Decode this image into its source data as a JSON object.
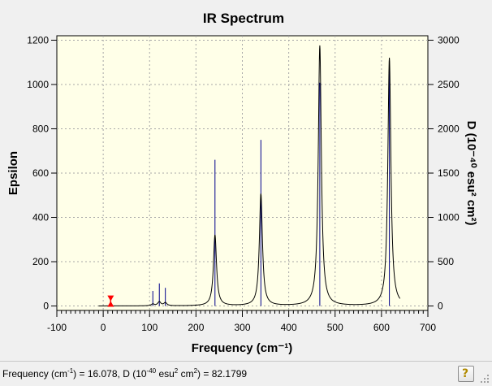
{
  "chart_data": {
    "type": "line",
    "title": "IR Spectrum",
    "xlabel": "Frequency (cm⁻¹)",
    "ylabel_left": "Epsilon",
    "ylabel_right": "D (10⁻⁴⁰ esu² cm²)",
    "xlim": [
      -100,
      700
    ],
    "ylim_left": [
      -20,
      1220
    ],
    "ylim_right": [
      -50,
      3050
    ],
    "x_ticks": [
      -100,
      0,
      100,
      200,
      300,
      400,
      500,
      600,
      700
    ],
    "y_ticks_left": [
      0,
      200,
      400,
      600,
      800,
      1000,
      1200
    ],
    "y_ticks_right": [
      0,
      500,
      1000,
      1500,
      2000,
      2500,
      3000
    ],
    "grid": true,
    "colors": {
      "spectrum": "#000000",
      "sticks": "#00008b",
      "marker": "#ff0000",
      "plot_bg": "#ffffe8"
    },
    "peaks": [
      {
        "x": 16.078,
        "epsilon": 0.8,
        "gamma": 3,
        "D": 82.18
      },
      {
        "x": 107,
        "epsilon": 8,
        "gamma": 4,
        "D": 170
      },
      {
        "x": 121,
        "epsilon": 18,
        "gamma": 4,
        "D": 255
      },
      {
        "x": 134,
        "epsilon": 14,
        "gamma": 4,
        "D": 205
      },
      {
        "x": 241,
        "epsilon": 320,
        "gamma": 4,
        "D": 1650
      },
      {
        "x": 340,
        "epsilon": 505,
        "gamma": 4,
        "D": 1875
      },
      {
        "x": 467,
        "epsilon": 1175,
        "gamma": 4,
        "D": 2520
      },
      {
        "x": 617,
        "epsilon": 1120,
        "gamma": 4,
        "D": 2700
      }
    ],
    "marker": {
      "x": 16.078,
      "D": 82.1799
    }
  },
  "status": {
    "label_freq": "Frequency (cm",
    "sup_freq": "-1",
    "label_mid": ") = 16.078, D (10",
    "sup_d": "-40",
    "label_unit": " esu",
    "sup_esu": "2",
    "label_cm": " cm",
    "sup_cm": "2",
    "label_end": ") = 82.1799"
  },
  "help_button": {
    "glyph": "?"
  },
  "icons": {
    "help": "question-icon",
    "grip": "resize-grip-icon"
  }
}
